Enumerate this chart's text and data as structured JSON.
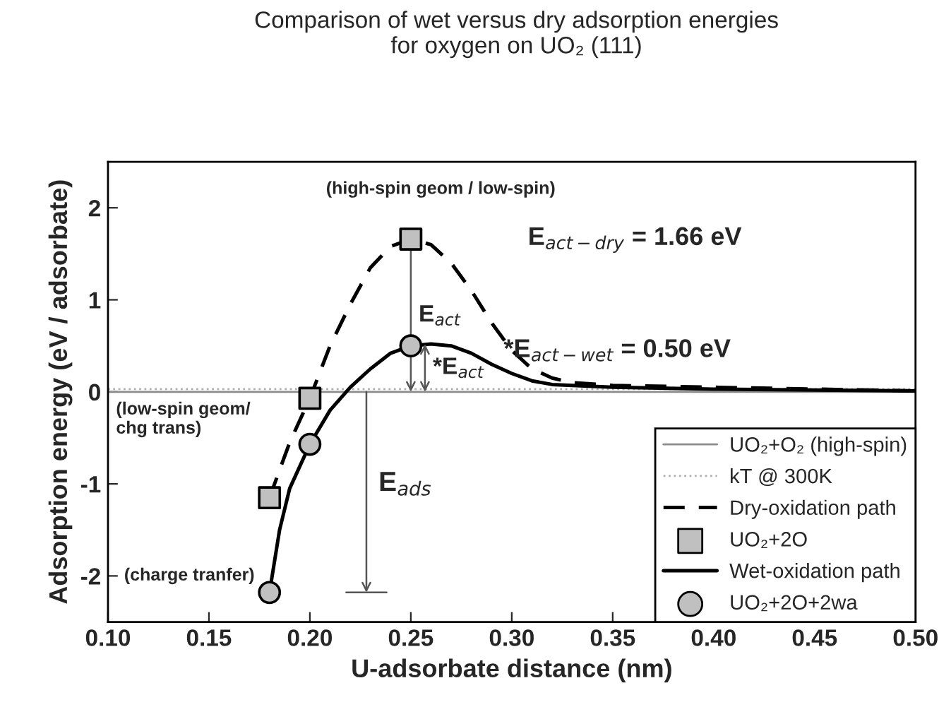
{
  "chart_data": {
    "type": "line",
    "title": "Comparison of wet versus dry adsorption energies\nfor oxygen on UO₂ (111)",
    "xlabel": "U-adsorbate distance (nm)",
    "ylabel": "Adsorption energy (eV / adsorbate)",
    "xlim": [
      0.1,
      0.5
    ],
    "ylim": [
      -2.5,
      2.5
    ],
    "xticks": [
      {
        "value": 0.1,
        "label": "0.10"
      },
      {
        "value": 0.15,
        "label": "0.15"
      },
      {
        "value": 0.2,
        "label": "0.20"
      },
      {
        "value": 0.25,
        "label": "0.25"
      },
      {
        "value": 0.3,
        "label": "0.30"
      },
      {
        "value": 0.35,
        "label": "0.35"
      },
      {
        "value": 0.4,
        "label": "0.40"
      },
      {
        "value": 0.45,
        "label": "0.45"
      },
      {
        "value": 0.5,
        "label": "0.50"
      }
    ],
    "yticks": [
      -2,
      -1,
      0,
      1,
      2
    ],
    "grid": false,
    "legend": "bottom right",
    "series": [
      {
        "name": "UO₂+O₂ (high-spin)",
        "type": "line",
        "color": "#8c8c8c",
        "line_style": "solid",
        "x": [
          0.1,
          0.5
        ],
        "values": [
          0,
          0
        ]
      },
      {
        "name": "kT @ 300K",
        "type": "line",
        "color": "#b0b0b0",
        "line_style": "dotted",
        "x": [
          0.1,
          0.5
        ],
        "values": [
          0.03,
          0.03
        ]
      },
      {
        "name": "Dry-oxidation path",
        "type": "line",
        "color": "#000000",
        "line_style": "dashed",
        "x": [
          0.18,
          0.19,
          0.2,
          0.21,
          0.22,
          0.23,
          0.24,
          0.25,
          0.26,
          0.27,
          0.28,
          0.29,
          0.3,
          0.31,
          0.32,
          0.33,
          0.35,
          0.4,
          0.45,
          0.5
        ],
        "values": [
          -1.15,
          -0.55,
          -0.07,
          0.5,
          0.95,
          1.35,
          1.58,
          1.66,
          1.6,
          1.4,
          1.1,
          0.75,
          0.45,
          0.25,
          0.15,
          0.1,
          0.07,
          0.05,
          0.03,
          0.01
        ]
      },
      {
        "name": "UO₂+2O",
        "type": "scatter",
        "marker": "square",
        "color": "#c0c0c0",
        "x": [
          0.18,
          0.2,
          0.25
        ],
        "values": [
          -1.15,
          -0.07,
          1.66
        ]
      },
      {
        "name": "Wet-oxidation path",
        "type": "line",
        "color": "#000000",
        "line_style": "solid",
        "x": [
          0.18,
          0.185,
          0.19,
          0.2,
          0.21,
          0.22,
          0.23,
          0.24,
          0.25,
          0.26,
          0.27,
          0.28,
          0.29,
          0.3,
          0.31,
          0.32,
          0.35,
          0.4,
          0.45,
          0.5
        ],
        "values": [
          -2.18,
          -1.5,
          -1.05,
          -0.57,
          -0.2,
          0.05,
          0.25,
          0.42,
          0.5,
          0.52,
          0.5,
          0.42,
          0.3,
          0.2,
          0.12,
          0.08,
          0.05,
          0.03,
          0.02,
          0.01
        ]
      },
      {
        "name": "UO₂+2O+2wa",
        "type": "scatter",
        "marker": "circle",
        "color": "#c0c0c0",
        "x": [
          0.18,
          0.2,
          0.25
        ],
        "values": [
          -2.18,
          -0.57,
          0.5
        ]
      }
    ],
    "annotations": [
      "(high-spin geom / low-spin)",
      "(low-spin geom/\nchg trans)",
      "(charge tranfer)",
      "E$_{act−dry}$ = 1.66 eV",
      "*E$_{act−wet}$ = 0.50 eV",
      {
        "text": "E$_{act}$",
        "x": 0.25,
        "y": 1.66
      },
      {
        "text": "*E$_{act}$",
        "x": 0.257,
        "y": 0.52
      },
      "E$_{ads}$"
    ]
  }
}
